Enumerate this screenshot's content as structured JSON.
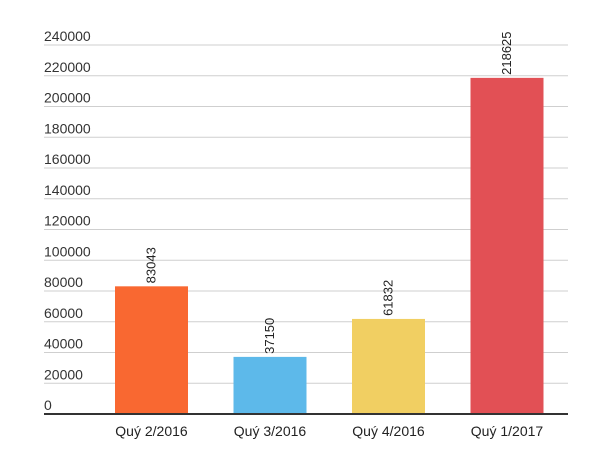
{
  "chart_data": {
    "type": "bar",
    "categories": [
      "Quý 2/2016",
      "Quý 3/2016",
      "Quý 4/2016",
      "Quý 1/2017"
    ],
    "values": [
      83043,
      37150,
      61832,
      218625
    ],
    "colors": [
      "#f96831",
      "#5db9ea",
      "#f1cf62",
      "#e25055"
    ],
    "yticks": [
      "0",
      "20000",
      "40000",
      "60000",
      "80000",
      "100000",
      "120000",
      "140000",
      "160000",
      "180000",
      "200000",
      "220000",
      "240000"
    ],
    "data_labels": [
      "83043",
      "37150",
      "61832",
      "218625"
    ],
    "ylim": [
      0,
      240000
    ],
    "grid": true,
    "title": "",
    "xlabel": "",
    "ylabel": ""
  }
}
